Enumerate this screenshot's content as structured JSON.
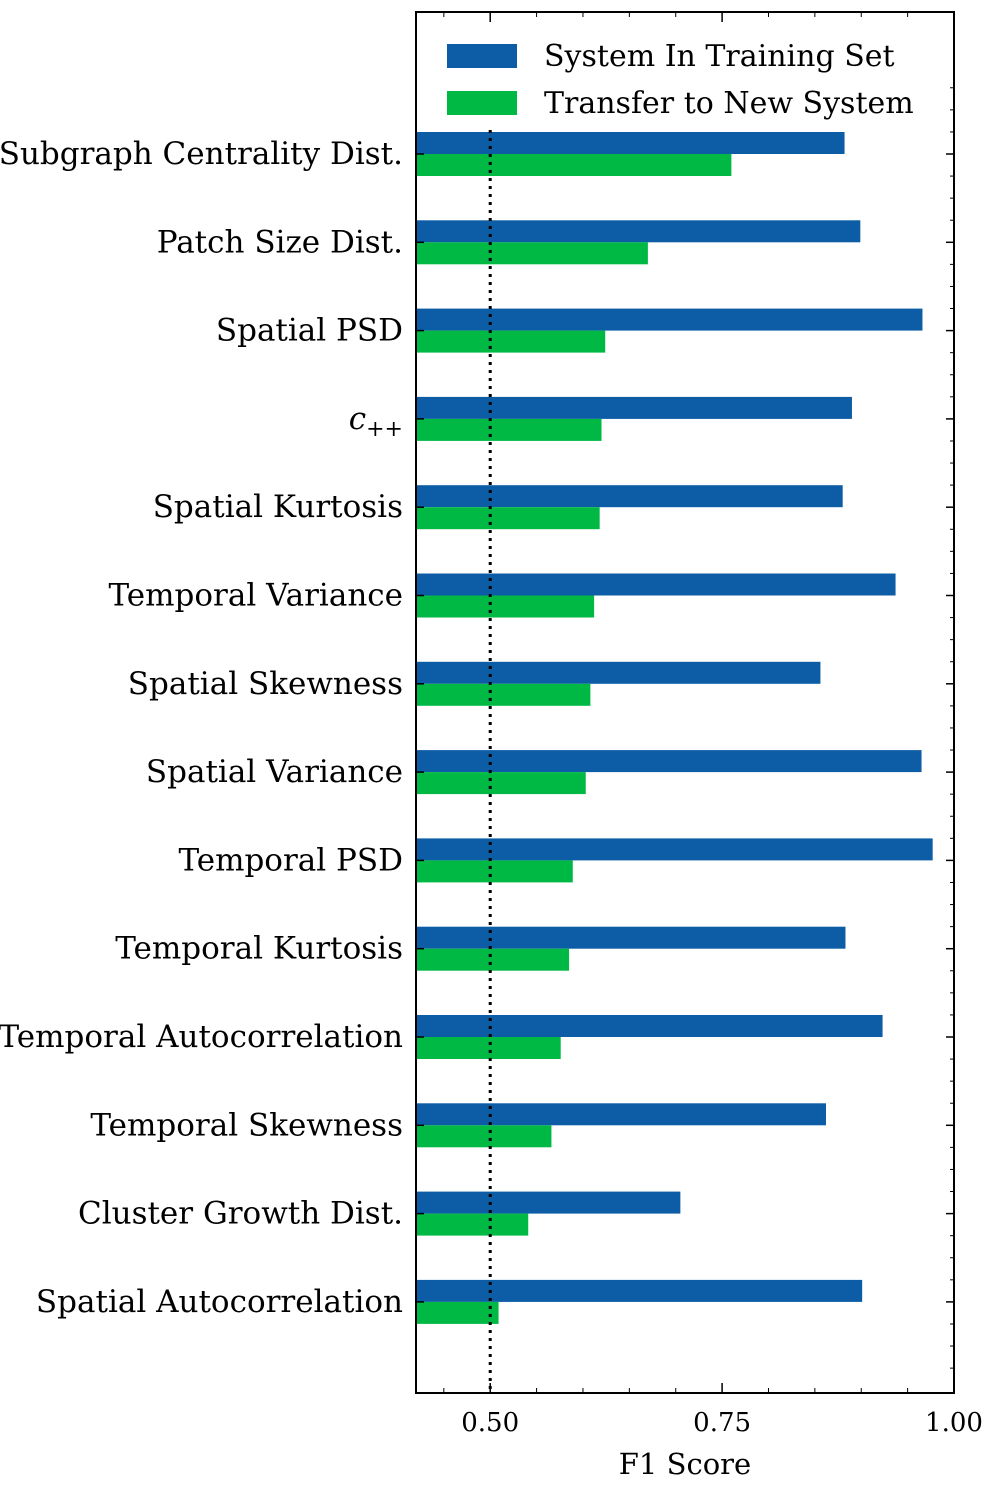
{
  "chart_data": {
    "type": "bar",
    "orientation": "horizontal",
    "title": "",
    "xlabel": "F1 Score",
    "ylabel": "",
    "xlim": [
      0.42,
      1.0
    ],
    "xticks": [
      0.5,
      0.75,
      1.0
    ],
    "xtick_labels": [
      "0.50",
      "0.75",
      "1.00"
    ],
    "reference_line": {
      "x": 0.5,
      "style": "dotted"
    },
    "grid": false,
    "legend_position": "top-right",
    "categories": [
      "Subgraph Centrality Dist.",
      "Patch Size Dist.",
      "Spatial PSD",
      "c++",
      "Spatial Kurtosis",
      "Temporal Variance",
      "Spatial Skewness",
      "Spatial Variance",
      "Temporal PSD",
      "Temporal Kurtosis",
      "Temporal Autocorrelation",
      "Temporal Skewness",
      "Cluster Growth Dist.",
      "Spatial Autocorrelation"
    ],
    "series": [
      {
        "name": "System In Training Set",
        "color": "#0C5DA5",
        "values": [
          0.882,
          0.899,
          0.966,
          0.89,
          0.88,
          0.937,
          0.856,
          0.965,
          0.977,
          0.883,
          0.923,
          0.862,
          0.705,
          0.901
        ]
      },
      {
        "name": "Transfer to New System",
        "color": "#00B945",
        "values": [
          0.76,
          0.67,
          0.624,
          0.62,
          0.618,
          0.612,
          0.608,
          0.603,
          0.589,
          0.585,
          0.576,
          0.566,
          0.541,
          0.509
        ]
      }
    ]
  }
}
